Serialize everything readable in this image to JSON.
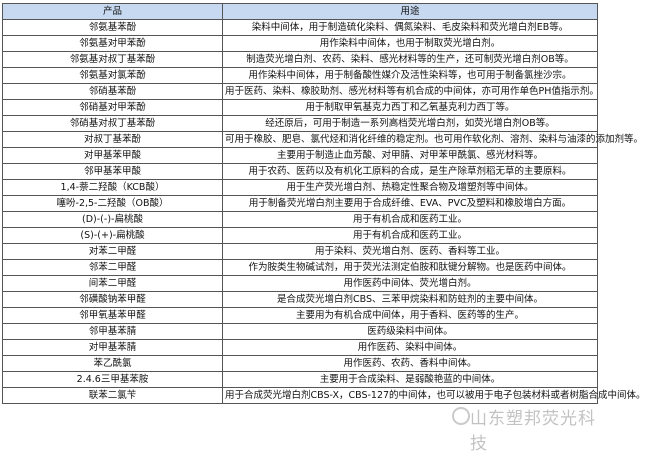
{
  "headers": [
    "产品",
    "用途"
  ],
  "rows": [
    [
      "邻氨基苯酚",
      "染料中间体，用于制造硫化染料、偶氮染料、毛皮染料和荧光增白剂EB等。"
    ],
    [
      "邻氨基对甲苯酚",
      "用作染料中间体，也用于制取荧光增白剂。"
    ],
    [
      "邻氨基对叔丁基苯酚",
      "制造荧光增白剂、农药、染料、感光材料等的生产，还可制荧光增白剂OB等。"
    ],
    [
      "邻氨基对氯苯酚",
      "用作染料中间体，用于制备酸性媒介及活性染料等，也可用于制备氯挫沙宗。"
    ],
    [
      "邻硝基苯酚",
      "用于医药、染料、橡胶助剂、感光材料等有机合成的中间体，亦可用作单色PH值指示剂。"
    ],
    [
      "邻硝基对甲苯酚",
      "用于制取甲氧基克力西丁和乙氧基克利力西丁等。"
    ],
    [
      "邻硝基对叔丁基苯酚",
      "经还原后，可用于制造一系列高档荧光增白剂，如荧光增白剂OB等。"
    ],
    [
      "对叔丁基苯酚",
      "可用于橡胶、肥皂、氯代烃和消化纤维的稳定剂。也可用作软化剂、溶剂、染料与油漆的添加剂等。"
    ],
    [
      "对甲基苯甲酸",
      "主要用于制造止血芳酸、对甲腈、对甲苯甲酰氯、感光材料等。"
    ],
    [
      "邻甲基苯甲酸",
      "用于农药、医药以及有机化工原料的合成，是生产除草剂稻无草的主要原料。"
    ],
    [
      "1,4-萘二羟酸（KCB酸）",
      "用于生产荧光增白剂、热稳定性聚合物及增塑剂等中间体。"
    ],
    [
      "噻吩-2,5-二羟酸（OB酸）",
      "用于制备荧光增白剂主要用于合成纤维、EVA、PVC及塑料和橡胶增白方面。"
    ],
    [
      "(D)-(-)-扁桃酸",
      "用于有机合成和医药工业。"
    ],
    [
      "(S)-(+)-扁桃酸",
      "用于有机合成和医药工业。"
    ],
    [
      "对苯二甲醛",
      "用于染料、荧光增白剂、医药、香料等工业。"
    ],
    [
      "邻苯二甲醛",
      "作为胺类生物碱试剂，用于荧光法测定伯胺和肽键分解物。也是医药中间体。"
    ],
    [
      "间苯二甲醛",
      "用作医药中间体、荧光增白剂。"
    ],
    [
      "邻磺酸钠苯甲醛",
      "是合成荧光增白剂CBS、三苯甲烷染料和防蛀剂的主要中间体。"
    ],
    [
      "邻甲氧基苯甲醛",
      "主要用为有机合成中间体，用于香料、医药等的生产。"
    ],
    [
      "邻甲基苯腈",
      "医药级染料中间体。"
    ],
    [
      "对甲基苯腈",
      "用作医药、染料中间体。"
    ],
    [
      "苯乙酰氯",
      "用作医药、农药、香料中间体。"
    ],
    [
      "2.4.6三甲基苯胺",
      "主要用于合成染料、是弱酸艳蓝的中间体。"
    ],
    [
      "联苯二氯苄",
      "用于合成荧光增白剂CBS-X，CBS-127的中间体，也可以被用于电子包装材料或者树脂合成中间体。"
    ]
  ],
  "watermark": "山东塑邦荧光科技",
  "colors": {
    "header_bg": "#c6d9f0",
    "border": "#555555"
  }
}
